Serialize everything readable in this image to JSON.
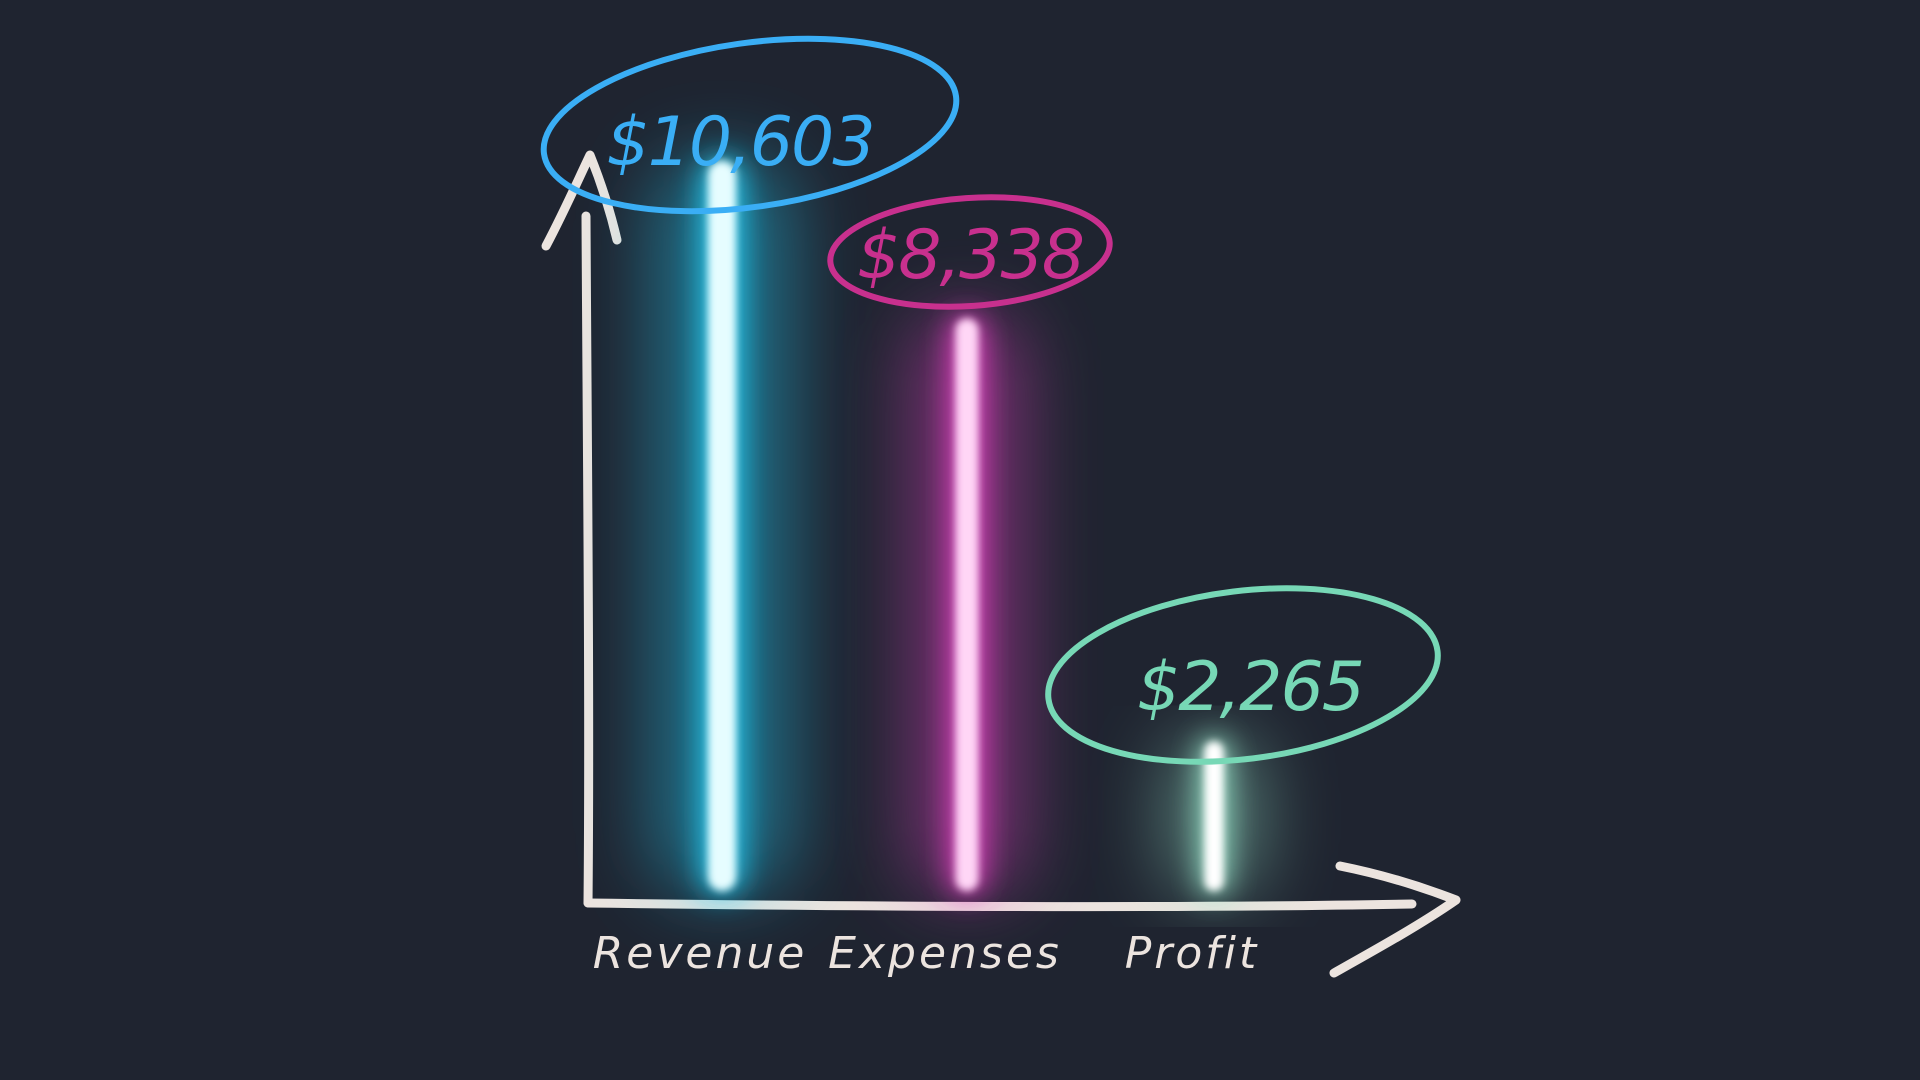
{
  "chart_data": {
    "type": "bar",
    "categories": [
      "Revenue",
      "Expenses",
      "Profit"
    ],
    "values": [
      10603,
      8338,
      2265
    ],
    "data_labels": [
      "$10,603",
      "$8,338",
      "$2,265"
    ],
    "ylim": [
      0,
      11200
    ],
    "grid": false,
    "legend": "none",
    "colors": {
      "background": "#1f2430",
      "axis": "#ece4df",
      "bars": [
        "#22c9f0",
        "#e040c0",
        "#9ae8cc"
      ],
      "bar_cores": [
        "#e6fdff",
        "#ffd6f6",
        "#ffffff"
      ],
      "labels": [
        "#3aaef5",
        "#c8308e",
        "#77d8b6"
      ]
    }
  }
}
